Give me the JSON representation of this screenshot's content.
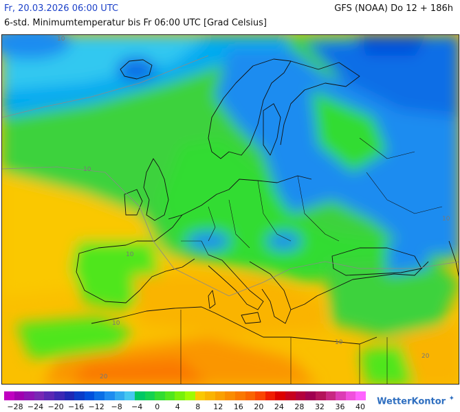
{
  "header": {
    "valid_time": "Fr, 20.03.2026 06:00 UTC",
    "model_run": "GFS (NOAA) Do 12 + 186h",
    "description": "6-std. Minimumtemperatur bis Fr 06:00 UTC [Grad Celsius]"
  },
  "map": {
    "contour_labels": [
      "10",
      "10",
      "10",
      "10",
      "10",
      "20",
      "20",
      "10"
    ]
  },
  "legend": {
    "colors": [
      "#c000c0",
      "#a000b0",
      "#8c14b4",
      "#7828b4",
      "#5a28b4",
      "#3c28b4",
      "#1e28b4",
      "#0a3cc8",
      "#0050dc",
      "#0a6ee6",
      "#1e8cf0",
      "#32aaf0",
      "#46c8f0",
      "#00c864",
      "#14d250",
      "#32dc32",
      "#50e61e",
      "#78f00a",
      "#a0fa00",
      "#fac800",
      "#fab400",
      "#faa000",
      "#fa8c00",
      "#fa7800",
      "#fa6400",
      "#fa4600",
      "#f01e00",
      "#dc0000",
      "#c8001e",
      "#b4003c",
      "#a00050",
      "#b4145a",
      "#c82882",
      "#dc3cb4",
      "#f050dc",
      "#ff64ff"
    ],
    "ticks": [
      "−28",
      "−24",
      "−20",
      "−16",
      "−12",
      "−8",
      "−4",
      "0",
      "4",
      "8",
      "12",
      "16",
      "20",
      "24",
      "28",
      "32",
      "36",
      "40"
    ]
  },
  "brand": {
    "name": "WetterKontor"
  }
}
